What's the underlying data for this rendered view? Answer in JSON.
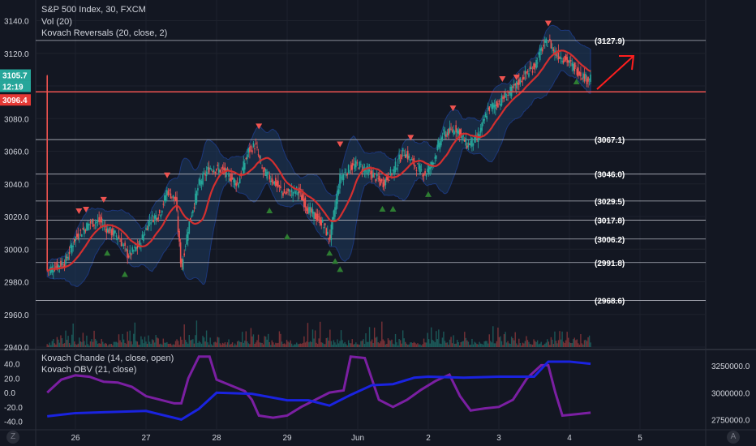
{
  "legend": {
    "symbol": "S&P 500 Index, 30, FXCM",
    "volume": "Vol (20)",
    "reversals": "Kovach Reversals (20, close, 2)",
    "chande": "Kovach Chande (14, close, open)",
    "obv": "Kovach OBV (21, close)"
  },
  "price_badges": {
    "current": "3105.7",
    "countdown": "12:19",
    "red_line": "3096.4"
  },
  "buttons": {
    "left": "Z",
    "right": "A"
  },
  "colors": {
    "background": "#131722",
    "up": "#26a69a",
    "down": "#ef5350",
    "band": "#1e3a5f",
    "ma": "#d32f2f",
    "chande": "#7b1fa2",
    "obv": "#1a23e0",
    "level": "#b2b5be",
    "arrow": "#ff1e1e"
  },
  "chart_data": [
    {
      "type": "candlestick",
      "title": "S&P 500 Index, 30, FXCM",
      "x_ticks": [
        "26",
        "27",
        "28",
        "29",
        "Jun",
        "2",
        "3",
        "4",
        "5"
      ],
      "y_ticks": [
        "3140.0",
        "3120.0",
        "3100.0",
        "3080.0",
        "3060.0",
        "3040.0",
        "3020.0",
        "3000.0",
        "2980.0",
        "2960.0",
        "2940.0"
      ],
      "ylim": [
        2940,
        3148
      ],
      "levels": [
        {
          "label": "(3127.9)",
          "value": 3127.9
        },
        {
          "label": "(3067.1)",
          "value": 3067.1
        },
        {
          "label": "(3046.0)",
          "value": 3046.0
        },
        {
          "label": "(3029.5)",
          "value": 3029.5
        },
        {
          "label": "(3017.8)",
          "value": 3017.8
        },
        {
          "label": "(3006.2)",
          "value": 3006.2
        },
        {
          "label": "(2991.8)",
          "value": 2991.8
        },
        {
          "label": "(2968.6)",
          "value": 2968.6
        }
      ],
      "red_support": 3096.4,
      "last_price": 3105.7,
      "close_path": [
        [
          25.6,
          2987
        ],
        [
          25.85,
          2992
        ],
        [
          26.0,
          3007
        ],
        [
          26.2,
          3016
        ],
        [
          26.35,
          3017
        ],
        [
          26.45,
          3012
        ],
        [
          26.6,
          3008
        ],
        [
          26.75,
          2996
        ],
        [
          26.9,
          3002
        ],
        [
          27.05,
          3018
        ],
        [
          27.2,
          3022
        ],
        [
          27.3,
          3036
        ],
        [
          27.42,
          3030
        ],
        [
          27.5,
          2988
        ],
        [
          27.6,
          3014
        ],
        [
          27.75,
          3040
        ],
        [
          27.9,
          3050
        ],
        [
          28.1,
          3048
        ],
        [
          28.3,
          3040
        ],
        [
          28.45,
          3060
        ],
        [
          28.55,
          3064
        ],
        [
          28.65,
          3048
        ],
        [
          28.8,
          3042
        ],
        [
          28.95,
          3034
        ],
        [
          29.15,
          3036
        ],
        [
          29.3,
          3024
        ],
        [
          29.5,
          3016
        ],
        [
          29.6,
          3006
        ],
        [
          29.75,
          3044
        ],
        [
          29.9,
          3050
        ],
        [
          30.0,
          3052
        ],
        [
          30.2,
          3046
        ],
        [
          30.35,
          3040
        ],
        [
          30.5,
          3048
        ],
        [
          30.65,
          3060
        ],
        [
          30.8,
          3052
        ],
        [
          30.95,
          3046
        ],
        [
          31.05,
          3052
        ],
        [
          31.2,
          3070
        ],
        [
          31.4,
          3074
        ],
        [
          31.55,
          3064
        ],
        [
          31.7,
          3068
        ],
        [
          31.85,
          3086
        ],
        [
          32.0,
          3090
        ],
        [
          32.2,
          3098
        ],
        [
          32.35,
          3106
        ],
        [
          32.5,
          3112
        ],
        [
          32.6,
          3122
        ],
        [
          32.7,
          3128
        ],
        [
          32.8,
          3120
        ],
        [
          32.95,
          3116
        ],
        [
          33.1,
          3110
        ],
        [
          33.25,
          3104
        ],
        [
          33.3,
          3106
        ]
      ],
      "reversal_down": [
        [
          26.05,
          3023
        ],
        [
          26.15,
          3024
        ],
        [
          26.4,
          3030
        ],
        [
          27.3,
          3045
        ],
        [
          28.6,
          3075
        ],
        [
          29.75,
          3064
        ],
        [
          30.75,
          3068
        ],
        [
          31.35,
          3086
        ],
        [
          32.05,
          3104
        ],
        [
          32.25,
          3105
        ],
        [
          32.7,
          3138
        ]
      ],
      "reversal_up": [
        [
          26.45,
          2998
        ],
        [
          26.7,
          2985
        ],
        [
          28.75,
          3024
        ],
        [
          29.0,
          3008
        ],
        [
          29.6,
          2998
        ],
        [
          29.75,
          2988
        ],
        [
          29.68,
          2993
        ],
        [
          30.35,
          3025
        ],
        [
          30.5,
          3025
        ],
        [
          31.0,
          3034
        ],
        [
          33.1,
          3103
        ]
      ]
    },
    {
      "type": "bar",
      "title": "Vol (20)",
      "values": [
        12,
        8,
        10,
        9,
        14,
        20,
        18,
        11,
        35,
        22,
        15,
        60,
        20,
        18,
        16,
        45,
        25,
        40,
        18,
        12,
        30,
        60,
        22,
        14,
        12,
        10,
        28,
        24,
        18,
        40,
        15,
        10,
        30,
        12,
        8,
        22,
        18,
        14,
        45,
        30,
        20,
        12,
        10,
        8,
        22,
        14,
        12,
        18,
        10,
        8
      ]
    },
    {
      "type": "line",
      "title": "Kovach Chande (14, close, open)",
      "y_ticks": [
        "40.0",
        "20.0",
        "0.0",
        "-20.0",
        "-40.0"
      ],
      "ylim": [
        -45,
        52
      ],
      "series": [
        {
          "name": "Kovach Chande",
          "values": [
            [
              25.6,
              0
            ],
            [
              25.8,
              18
            ],
            [
              26.0,
              24
            ],
            [
              26.2,
              22
            ],
            [
              26.4,
              15
            ],
            [
              26.6,
              14
            ],
            [
              26.8,
              8
            ],
            [
              27.0,
              -5
            ],
            [
              27.2,
              -10
            ],
            [
              27.4,
              -15
            ],
            [
              27.5,
              -15
            ],
            [
              27.6,
              20
            ],
            [
              27.75,
              50
            ],
            [
              27.9,
              50
            ],
            [
              28.0,
              18
            ],
            [
              28.2,
              10
            ],
            [
              28.4,
              2
            ],
            [
              28.5,
              -10
            ],
            [
              28.6,
              -32
            ],
            [
              28.8,
              -35
            ],
            [
              29.0,
              -32
            ],
            [
              29.2,
              -20
            ],
            [
              29.4,
              -10
            ],
            [
              29.6,
              0
            ],
            [
              29.8,
              3
            ],
            [
              29.9,
              50
            ],
            [
              30.1,
              48
            ],
            [
              30.3,
              -10
            ],
            [
              30.5,
              -20
            ],
            [
              30.7,
              -10
            ],
            [
              30.9,
              4
            ],
            [
              31.1,
              16
            ],
            [
              31.3,
              25
            ],
            [
              31.45,
              -5
            ],
            [
              31.6,
              -25
            ],
            [
              31.8,
              -22
            ],
            [
              32.0,
              -20
            ],
            [
              32.2,
              -10
            ],
            [
              32.4,
              20
            ],
            [
              32.6,
              38
            ],
            [
              32.7,
              38
            ],
            [
              32.8,
              0
            ],
            [
              32.9,
              -32
            ],
            [
              33.1,
              -30
            ],
            [
              33.3,
              -28
            ]
          ]
        },
        {
          "name": "Kovach OBV",
          "axis": "right",
          "values": [
            [
              25.6,
              2780000
            ],
            [
              26.0,
              2810000
            ],
            [
              26.5,
              2820000
            ],
            [
              27.0,
              2830000
            ],
            [
              27.5,
              2750000
            ],
            [
              27.75,
              2850000
            ],
            [
              28.0,
              3000000
            ],
            [
              28.5,
              2990000
            ],
            [
              29.0,
              2930000
            ],
            [
              29.3,
              2930000
            ],
            [
              29.6,
              2880000
            ],
            [
              29.9,
              2980000
            ],
            [
              30.2,
              3070000
            ],
            [
              30.5,
              3080000
            ],
            [
              30.8,
              3140000
            ],
            [
              31.0,
              3150000
            ],
            [
              31.5,
              3140000
            ],
            [
              32.0,
              3150000
            ],
            [
              32.5,
              3150000
            ],
            [
              32.7,
              3290000
            ],
            [
              33.0,
              3290000
            ],
            [
              33.3,
              3270000
            ]
          ]
        }
      ],
      "right_ticks": [
        "3250000.0",
        "3000000.0",
        "2750000.0"
      ]
    }
  ]
}
